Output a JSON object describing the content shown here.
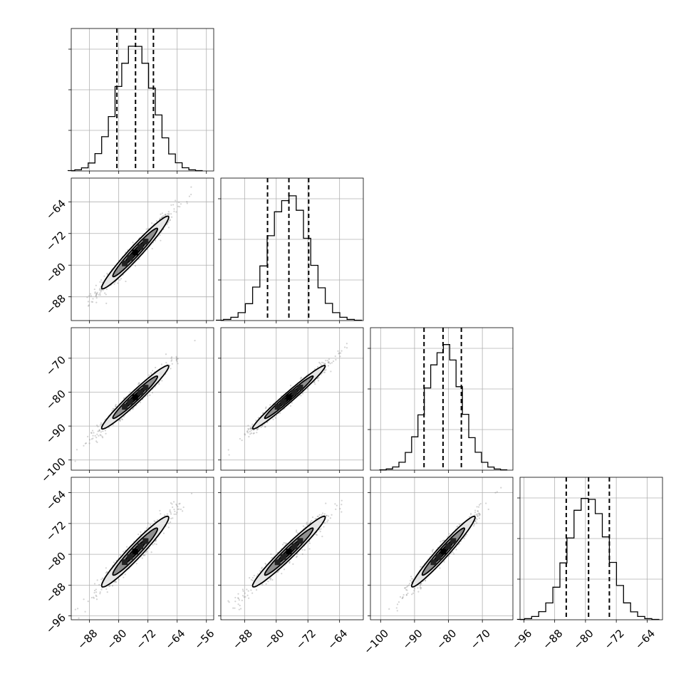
{
  "figure": {
    "type": "corner-plot",
    "layout": "4x4 lower-triangle"
  },
  "chart_data": {
    "type": "corner",
    "parameters": [
      {
        "range": [
          -93,
          -54
        ],
        "ticks": [
          -88,
          -80,
          -72,
          -64,
          -56
        ],
        "tick_labels": [
          "−88",
          "−80",
          "−72",
          "−64",
          "−56"
        ],
        "mean": -75.5,
        "sigma": 5.1,
        "quantiles": [
          -80.5,
          -75.4,
          -70.5
        ]
      },
      {
        "range": [
          -94,
          -58
        ],
        "ticks": [
          -88,
          -80,
          -72,
          -64
        ],
        "tick_labels": [
          "−88",
          "−80",
          "−72",
          "−64"
        ],
        "mean": -76.8,
        "sigma": 5.1,
        "quantiles": [
          -82.2,
          -76.8,
          -71.8
        ]
      },
      {
        "range": [
          -103,
          -61
        ],
        "ticks": [
          -100,
          -90,
          -80,
          -70
        ],
        "tick_labels": [
          "−100",
          "−90",
          "−80",
          "−70"
        ],
        "mean": -81.5,
        "sigma": 5.2,
        "quantiles": [
          -87.2,
          -81.6,
          -76.2
        ]
      },
      {
        "range": [
          -97,
          -60
        ],
        "ticks": [
          -96,
          -88,
          -80,
          -72,
          -64
        ],
        "tick_labels": [
          "−96",
          "−88",
          "−80",
          "−72",
          "−64"
        ],
        "mean": -79.3,
        "sigma": 5.1,
        "quantiles": [
          -85.0,
          -79.2,
          -73.8
        ]
      }
    ],
    "diagonal_histograms": [
      {
        "bins": 20,
        "peak_normalized": 1.0
      },
      {
        "bins": 20,
        "peak_normalized": 1.0
      },
      {
        "bins": 20,
        "peak_normalized": 1.0
      },
      {
        "bins": 20,
        "peak_normalized": 1.0
      }
    ],
    "pair_correlations": [
      {
        "row": 1,
        "col": 0,
        "rho": 0.97
      },
      {
        "row": 2,
        "col": 0,
        "rho": 0.97
      },
      {
        "row": 2,
        "col": 1,
        "rho": 0.98
      },
      {
        "row": 3,
        "col": 0,
        "rho": 0.96
      },
      {
        "row": 3,
        "col": 1,
        "rho": 0.97
      },
      {
        "row": 3,
        "col": 2,
        "rho": 0.97
      }
    ],
    "density_levels": [
      0.5,
      1.0,
      1.5
    ],
    "grid": true,
    "colors": {
      "line": "#000000",
      "grid": "#b0b0b0",
      "points": "#808080",
      "fill_outer": "#e6e6e6",
      "fill_mid": "#8a8a8a",
      "fill_inner": "#3a3a3a"
    }
  }
}
